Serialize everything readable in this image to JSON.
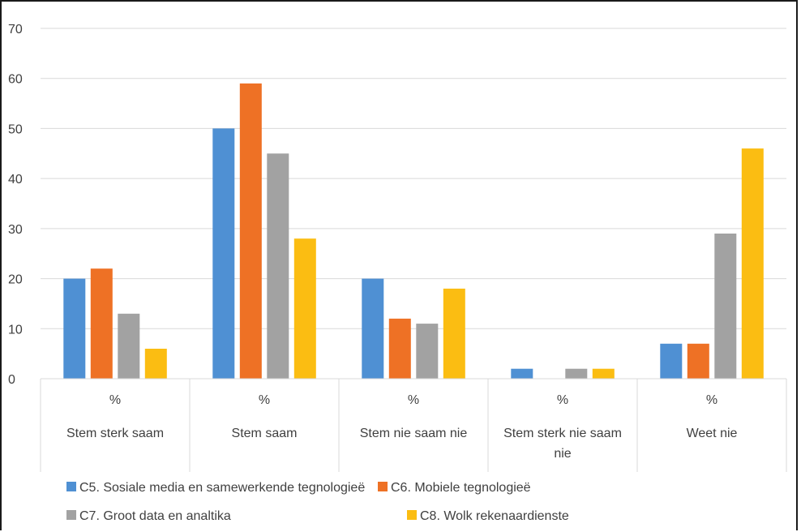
{
  "chart_data": {
    "type": "bar",
    "ylim": [
      0,
      70
    ],
    "yticks": [
      0,
      10,
      20,
      30,
      40,
      50,
      60,
      70
    ],
    "grid": true,
    "legend_position": "bottom",
    "unit_row": "%",
    "categories": [
      [
        "Stem sterk saam"
      ],
      [
        "Stem saam"
      ],
      [
        "Stem nie saam nie"
      ],
      [
        "Stem sterk nie saam",
        "nie"
      ],
      [
        "Weet nie"
      ]
    ],
    "series": [
      {
        "name": "C5. Sosiale media en samewerkende tegnologieë",
        "color": "#4f90d3",
        "values": [
          20,
          50,
          20,
          2,
          7
        ]
      },
      {
        "name": "C6. Mobiele tegnologieë",
        "color": "#ee7125",
        "values": [
          22,
          59,
          12,
          0,
          7
        ]
      },
      {
        "name": "C7. Groot data en analtika",
        "color": "#a2a2a2",
        "values": [
          13,
          45,
          11,
          2,
          29
        ]
      },
      {
        "name": "C8. Wolk rekenaardienste",
        "color": "#fbbd12",
        "values": [
          6,
          28,
          18,
          2,
          46
        ]
      }
    ]
  }
}
